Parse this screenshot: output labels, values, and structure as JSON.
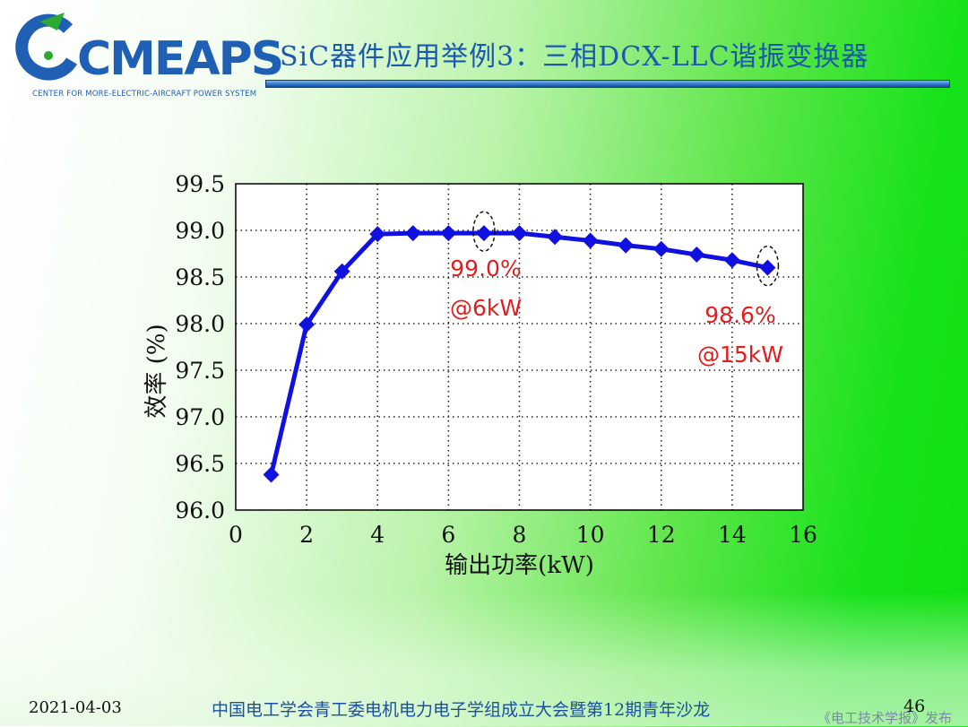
{
  "header": {
    "logo_text": "CMEAPS",
    "logo_subtitle": "CENTER FOR MORE-ELECTRIC-AIRCRAFT POWER SYSTEM",
    "title": "SiC器件应用举例3：三相DCX-LLC谐振变换器",
    "logo_colors": {
      "blue": "#1f5fb4",
      "green": "#2aa832"
    }
  },
  "chart_data": {
    "type": "line",
    "xlabel": "输出功率(kW)",
    "ylabel": "效率 (%)",
    "xlim": [
      0,
      16
    ],
    "ylim": [
      96.0,
      99.5
    ],
    "x_ticks": [
      "0",
      "2",
      "4",
      "6",
      "8",
      "10",
      "12",
      "14",
      "16"
    ],
    "y_ticks": [
      "96.0",
      "96.5",
      "97.0",
      "97.5",
      "98.0",
      "98.5",
      "99.0",
      "99.5"
    ],
    "grid": true,
    "series": [
      {
        "color": "#1010e0",
        "marker": "diamond",
        "x": [
          1,
          2,
          3,
          4,
          5,
          6,
          7,
          8,
          9,
          10,
          11,
          12,
          13,
          14,
          15
        ],
        "values": [
          96.38,
          97.99,
          98.56,
          98.96,
          98.97,
          98.97,
          98.97,
          98.97,
          98.93,
          98.89,
          98.84,
          98.8,
          98.74,
          98.68,
          98.6
        ]
      }
    ],
    "annotations": [
      {
        "x": 7,
        "y": 98.97,
        "line1": "99.0%",
        "line2": "@6kW",
        "color": "#e21d1d"
      },
      {
        "x": 15,
        "y": 98.6,
        "line1": "98.6%",
        "line2": "@15kW",
        "color": "#e21d1d"
      }
    ]
  },
  "footer": {
    "date": "2021-04-03",
    "event": "中国电工学会青工委电机电力电子学组成立大会暨第12期青年沙龙",
    "page": "46",
    "publisher": "《电工技术学报》发布"
  }
}
